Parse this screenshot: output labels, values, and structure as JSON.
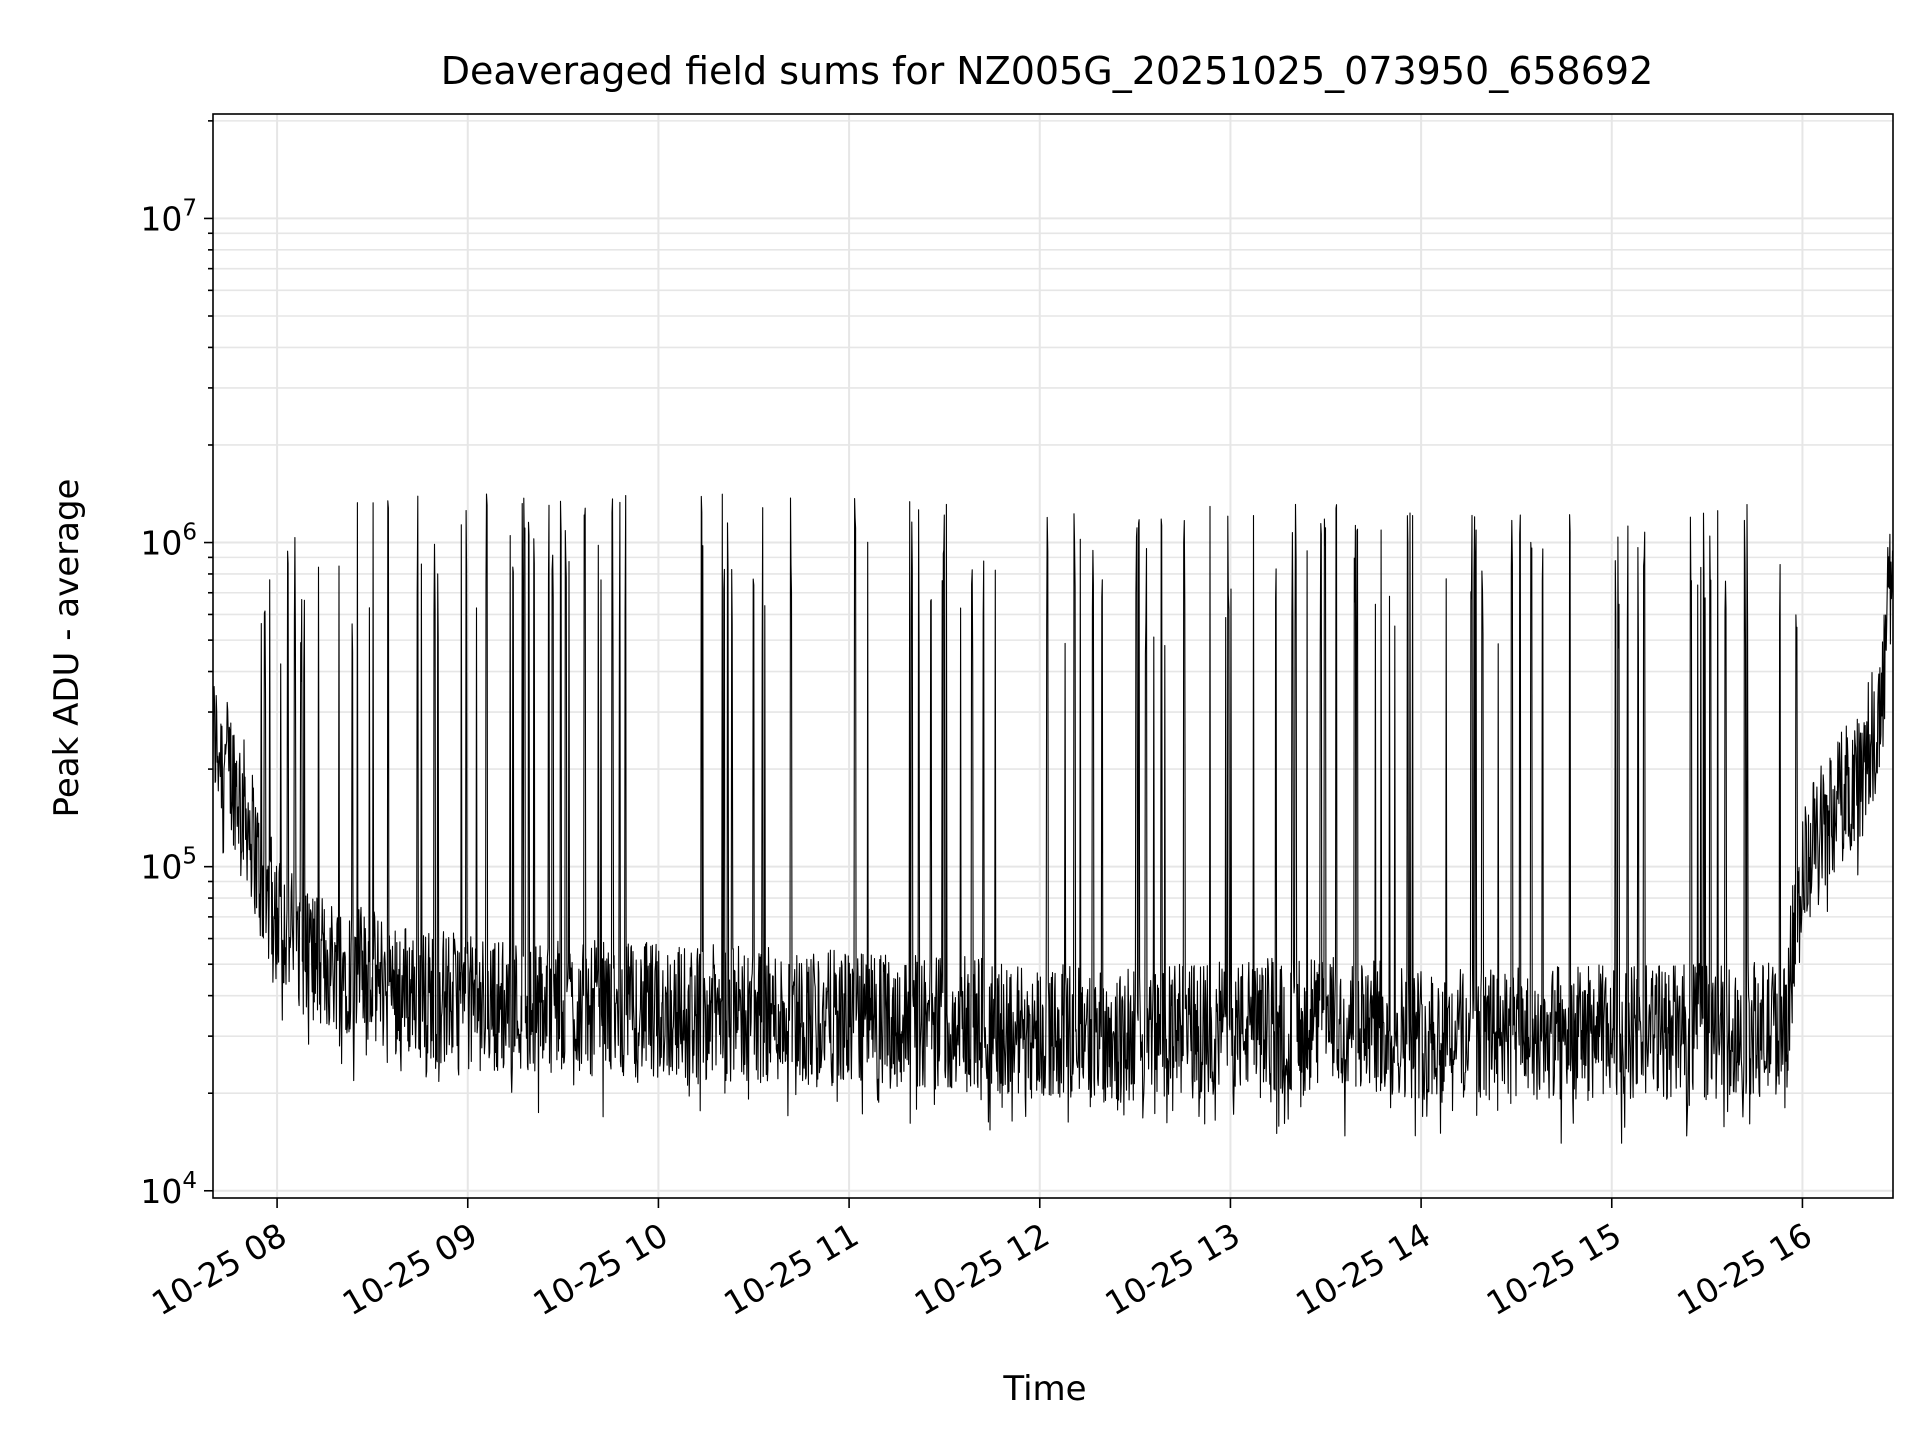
{
  "chart_data": {
    "type": "line",
    "title": "Deaveraged field sums for NZ005G_20251025_073950_658692",
    "xlabel": "Time",
    "ylabel": "Peak ADU - average",
    "yscale": "log",
    "ylim": [
      9500,
      21000000
    ],
    "xlim": [
      "2025-10-25 07:39:50",
      "2025-10-25 16:28:30"
    ],
    "x_ticks": [
      {
        "time": "2025-10-25 08:00",
        "label": "10-25 08"
      },
      {
        "time": "2025-10-25 09:00",
        "label": "10-25 09"
      },
      {
        "time": "2025-10-25 10:00",
        "label": "10-25 10"
      },
      {
        "time": "2025-10-25 11:00",
        "label": "10-25 11"
      },
      {
        "time": "2025-10-25 12:00",
        "label": "10-25 12"
      },
      {
        "time": "2025-10-25 13:00",
        "label": "10-25 13"
      },
      {
        "time": "2025-10-25 14:00",
        "label": "10-25 14"
      },
      {
        "time": "2025-10-25 15:00",
        "label": "10-25 15"
      },
      {
        "time": "2025-10-25 16:00",
        "label": "10-25 16"
      }
    ],
    "y_ticks": [
      {
        "value": 10000,
        "base": "10",
        "exp": "4"
      },
      {
        "value": 100000,
        "base": "10",
        "exp": "5"
      },
      {
        "value": 1000000,
        "base": "10",
        "exp": "6"
      },
      {
        "value": 10000000,
        "base": "10",
        "exp": "7"
      }
    ],
    "grid": true,
    "line_color": "#000000",
    "grid_color": "#e6e6e6",
    "series": [
      {
        "x": [
          "2025-10-25 07:40",
          "2025-10-25 07:45",
          "2025-10-25 07:50",
          "2025-10-25 07:55",
          "2025-10-25 08:00",
          "2025-10-25 08:05",
          "2025-10-25 08:10",
          "2025-10-25 08:15",
          "2025-10-25 08:20",
          "2025-10-25 08:25",
          "2025-10-25 08:30",
          "2025-10-25 08:40",
          "2025-10-25 08:50",
          "2025-10-25 09:00",
          "2025-10-25 09:30",
          "2025-10-25 10:00",
          "2025-10-25 10:30",
          "2025-10-25 11:00",
          "2025-10-25 11:30",
          "2025-10-25 12:00",
          "2025-10-25 12:30",
          "2025-10-25 13:00",
          "2025-10-25 13:30",
          "2025-10-25 14:00",
          "2025-10-25 14:30",
          "2025-10-25 15:00",
          "2025-10-25 15:30",
          "2025-10-25 15:55",
          "2025-10-25 16:00",
          "2025-10-25 16:05",
          "2025-10-25 16:10",
          "2025-10-25 16:15",
          "2025-10-25 16:20",
          "2025-10-25 16:25",
          "2025-10-25 16:28"
        ],
        "base": [
          250000,
          200000,
          150000,
          90000,
          70000,
          60000,
          55000,
          50000,
          50000,
          48000,
          45000,
          42000,
          40000,
          38000,
          37000,
          36000,
          35000,
          34000,
          33000,
          31000,
          30000,
          32000,
          33000,
          31000,
          30000,
          31000,
          31000,
          32000,
          90000,
          130000,
          150000,
          180000,
          220000,
          300000,
          800000
        ],
        "peak": [
          400000,
          300000,
          500000,
          600000,
          800000,
          1000000,
          1100000,
          1200000,
          1200000,
          1300000,
          1300000,
          1300000,
          1300000,
          1300000,
          1300000,
          1300000,
          1300000,
          1250000,
          1200000,
          1150000,
          1150000,
          1200000,
          1200000,
          1200000,
          1150000,
          1150000,
          1200000,
          1200000,
          500000,
          200000,
          200000,
          250000,
          300000,
          400000,
          1000000
        ],
        "burst_fraction": [
          0.3,
          0.3,
          0.4,
          0.5,
          0.6,
          0.7,
          0.8,
          0.8,
          0.7,
          0.6,
          0.55,
          0.5,
          0.5,
          0.5,
          0.5,
          0.5,
          0.5,
          0.45,
          0.45,
          0.4,
          0.4,
          0.45,
          0.45,
          0.45,
          0.45,
          0.45,
          0.45,
          0.45,
          0.1,
          0.0,
          0.0,
          0.0,
          0.0,
          0.0,
          0.0
        ],
        "x_end": "2025-10-25 16:28:30"
      }
    ]
  }
}
